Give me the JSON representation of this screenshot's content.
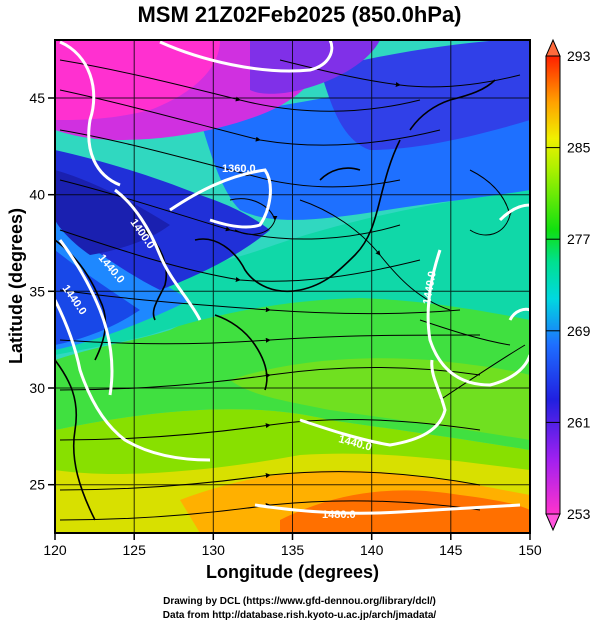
{
  "title": "MSM 21Z02Feb2025 (850.0hPa)",
  "chart_data": {
    "type": "heatmap",
    "title": "MSM 21Z02Feb2025 (850.0hPa)",
    "xlabel": "Longitude (degrees)",
    "ylabel": "Latitude  (degrees)",
    "xlim": [
      120,
      150
    ],
    "ylim": [
      22.5,
      48
    ],
    "x_ticks": [
      "120",
      "125",
      "130",
      "135",
      "140",
      "145",
      "150"
    ],
    "y_ticks": [
      "25",
      "30",
      "35",
      "40",
      "45"
    ],
    "grid": true,
    "colorbar": {
      "ticks": [
        "253",
        "261",
        "269",
        "277",
        "285",
        "293"
      ],
      "min": 253,
      "max": 293
    },
    "contour_labels": [
      "1360.0",
      "1400.0",
      "1440.0",
      "1440.0",
      "1440.0",
      "1440.0",
      "1480.0"
    ],
    "overlay": "wind streamlines, coastlines"
  },
  "credits": {
    "line1": "Drawing by DCL (https://www.gfd-dennou.org/library/dcl/)",
    "line2": "Data from http://database.rish.kyoto-u.ac.jp/arch/jmadata/"
  }
}
